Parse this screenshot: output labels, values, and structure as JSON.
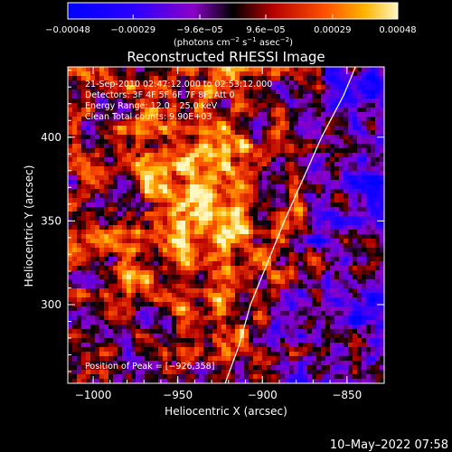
{
  "colorbar": {
    "tick_labels": [
      "−0.00048",
      "−0.00029",
      "−9.6e−05",
      "9.6e−05",
      "0.00029",
      "0.00048"
    ],
    "tick_values": [
      -0.00048,
      -0.00029,
      -9.6e-05,
      9.6e-05,
      0.00029,
      0.00048
    ],
    "range": [
      -0.00048,
      0.00048
    ],
    "unit_main": "(photons cm",
    "unit_exp1": "−2",
    "unit_mid": " s",
    "unit_exp2": "−1",
    "unit_tail": " asec",
    "unit_exp3": "−2",
    "unit_close": ")"
  },
  "chart_data": {
    "type": "heatmap",
    "title": "Reconstructed RHESSI Image",
    "xlabel": "Heliocentric X (arcsec)",
    "ylabel": "Heliocentric Y (arcsec)",
    "xlim": [
      -1015,
      -828
    ],
    "ylim": [
      253,
      442
    ],
    "x_ticks": [
      -1000,
      -950,
      -900,
      -850
    ],
    "x_tick_labels": [
      "−1000",
      "−950",
      "−900",
      "−850"
    ],
    "y_ticks": [
      300,
      350,
      400
    ],
    "y_tick_labels": [
      "300",
      "350",
      "400"
    ],
    "annotations": [
      "21-Sep-2010 02:47:12.000 to 02:53:12.000",
      "Detectors: 3F 4F 5F 6F 7F 8F, Att 0",
      "Energy Range: 12.0 – 25.0 keV",
      "Clean      Total counts: 9.90E+03"
    ],
    "peak_label": "Position of Peak = [−926,358]",
    "peak": [
      -926,
      358
    ],
    "limb_line": [
      [
        -922,
        253
      ],
      [
        -914,
        275
      ],
      [
        -907,
        300
      ],
      [
        -897,
        325
      ],
      [
        -887,
        350
      ],
      [
        -876,
        375
      ],
      [
        -865,
        400
      ],
      [
        -852,
        425
      ],
      [
        -845,
        442
      ]
    ]
  },
  "footer": {
    "timestamp": "10–May–2022 07:58"
  },
  "colors": {
    "background": "#000000",
    "text": "#ffffff"
  }
}
